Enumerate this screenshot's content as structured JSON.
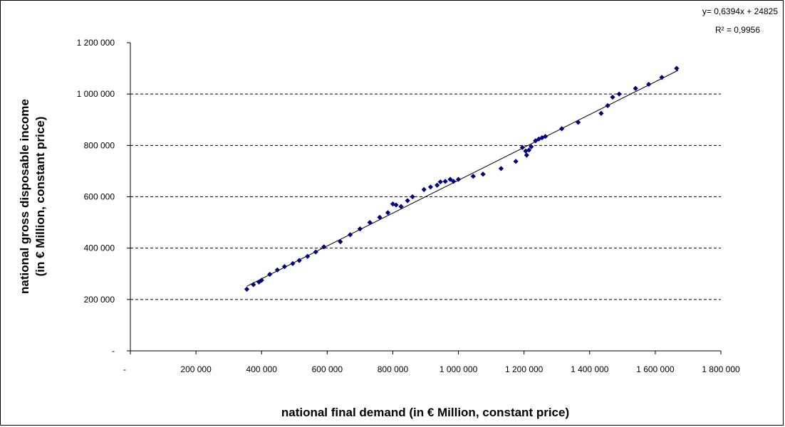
{
  "chart_data": {
    "type": "scatter",
    "title": "",
    "xlabel": "national final demand (in € Million, constant price)",
    "ylabel_line1": "national gross disposable income",
    "ylabel_line2": "(in € Million, constant price)",
    "xlim": [
      0,
      1800000
    ],
    "ylim": [
      0,
      1200000
    ],
    "x_ticks": [
      {
        "value": 0,
        "label": "-"
      },
      {
        "value": 200000,
        "label": "200 000"
      },
      {
        "value": 400000,
        "label": "400 000"
      },
      {
        "value": 600000,
        "label": "600 000"
      },
      {
        "value": 800000,
        "label": "800 000"
      },
      {
        "value": 1000000,
        "label": "1 000 000"
      },
      {
        "value": 1200000,
        "label": "1 200 000"
      },
      {
        "value": 1400000,
        "label": "1 400 000"
      },
      {
        "value": 1600000,
        "label": "1 600 000"
      },
      {
        "value": 1800000,
        "label": "1 800 000"
      }
    ],
    "y_ticks": [
      {
        "value": 0,
        "label": "-"
      },
      {
        "value": 200000,
        "label": "200 000"
      },
      {
        "value": 400000,
        "label": "400 000"
      },
      {
        "value": 600000,
        "label": "600 000"
      },
      {
        "value": 800000,
        "label": "800 000"
      },
      {
        "value": 1000000,
        "label": "1 000 000"
      },
      {
        "value": 1200000,
        "label": "1 200 000"
      }
    ],
    "grid": "horizontal dashed",
    "marker_color": "#000080",
    "trendline": {
      "equation": "y= 0,6394x + 24825",
      "r2_label": "R² = 0,9956",
      "slope": 0.6394,
      "intercept": 24825,
      "x_range": [
        355000,
        1670000
      ]
    },
    "points": [
      [
        355000,
        240000
      ],
      [
        375000,
        258000
      ],
      [
        392000,
        268000
      ],
      [
        400000,
        275000
      ],
      [
        425000,
        298000
      ],
      [
        448000,
        315000
      ],
      [
        470000,
        328000
      ],
      [
        495000,
        340000
      ],
      [
        515000,
        352000
      ],
      [
        540000,
        368000
      ],
      [
        565000,
        385000
      ],
      [
        590000,
        405000
      ],
      [
        640000,
        425000
      ],
      [
        670000,
        452000
      ],
      [
        700000,
        475000
      ],
      [
        730000,
        500000
      ],
      [
        760000,
        520000
      ],
      [
        785000,
        538000
      ],
      [
        800000,
        572000
      ],
      [
        810000,
        568000
      ],
      [
        825000,
        562000
      ],
      [
        845000,
        585000
      ],
      [
        860000,
        600000
      ],
      [
        895000,
        628000
      ],
      [
        915000,
        638000
      ],
      [
        935000,
        645000
      ],
      [
        945000,
        658000
      ],
      [
        960000,
        660000
      ],
      [
        975000,
        668000
      ],
      [
        985000,
        660000
      ],
      [
        1000000,
        668000
      ],
      [
        1045000,
        680000
      ],
      [
        1075000,
        688000
      ],
      [
        1130000,
        710000
      ],
      [
        1175000,
        738000
      ],
      [
        1195000,
        792000
      ],
      [
        1205000,
        778000
      ],
      [
        1208000,
        762000
      ],
      [
        1215000,
        782000
      ],
      [
        1222000,
        795000
      ],
      [
        1235000,
        818000
      ],
      [
        1245000,
        825000
      ],
      [
        1255000,
        830000
      ],
      [
        1265000,
        835000
      ],
      [
        1315000,
        865000
      ],
      [
        1365000,
        890000
      ],
      [
        1435000,
        925000
      ],
      [
        1455000,
        955000
      ],
      [
        1470000,
        988000
      ],
      [
        1490000,
        1000000
      ],
      [
        1540000,
        1022000
      ],
      [
        1580000,
        1038000
      ],
      [
        1620000,
        1065000
      ],
      [
        1665000,
        1100000
      ]
    ]
  }
}
